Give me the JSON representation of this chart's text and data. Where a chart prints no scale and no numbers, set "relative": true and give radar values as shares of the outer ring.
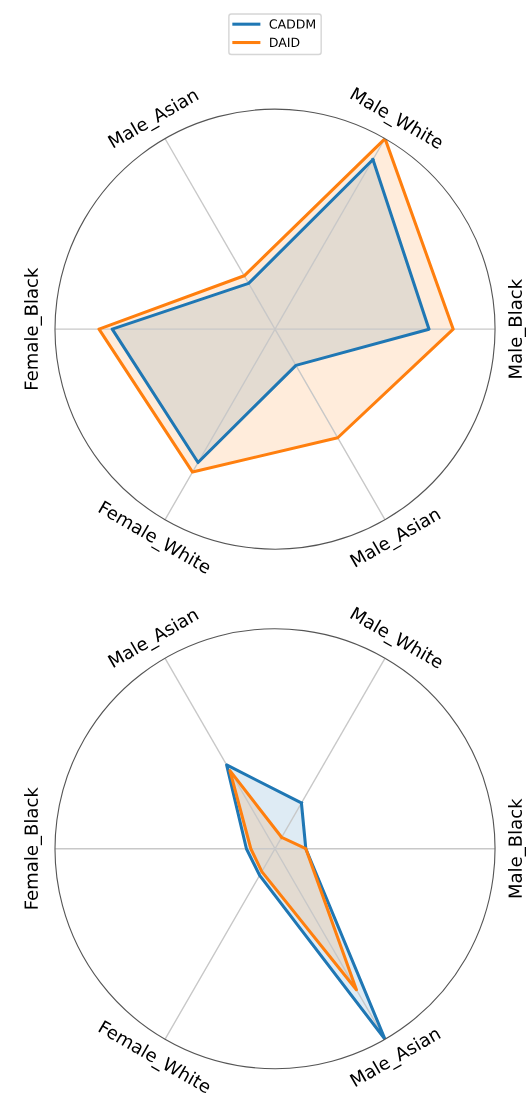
{
  "chart_data": [
    {
      "type": "radar",
      "relative": true,
      "grid": "x",
      "legend": "top",
      "categories": [
        "Male_White",
        "Male_Black",
        "Male_Asian",
        "Female_White",
        "Female_Black",
        "Male_Asian"
      ],
      "series": [
        {
          "name": "CADDM",
          "color": "#1f77b4",
          "values": [
            0.89,
            0.7,
            0.19,
            0.7,
            0.74,
            0.24
          ]
        },
        {
          "name": "DAID",
          "color": "#ff7f0e",
          "values": [
            1.0,
            0.81,
            0.57,
            0.75,
            0.8,
            0.28
          ]
        }
      ]
    },
    {
      "type": "radar",
      "relative": true,
      "grid": "x",
      "legend": false,
      "categories": [
        "Male_White",
        "Male_Black",
        "Male_Asian",
        "Female_White",
        "Female_Black",
        "Male_Asian"
      ],
      "series": [
        {
          "color": "#1f77b4",
          "values": [
            0.24,
            0.14,
            1.0,
            0.14,
            0.13,
            0.44
          ]
        },
        {
          "color": "#ff7f0e",
          "values": [
            0.06,
            0.14,
            0.74,
            0.12,
            0.11,
            0.41
          ]
        }
      ]
    }
  ]
}
